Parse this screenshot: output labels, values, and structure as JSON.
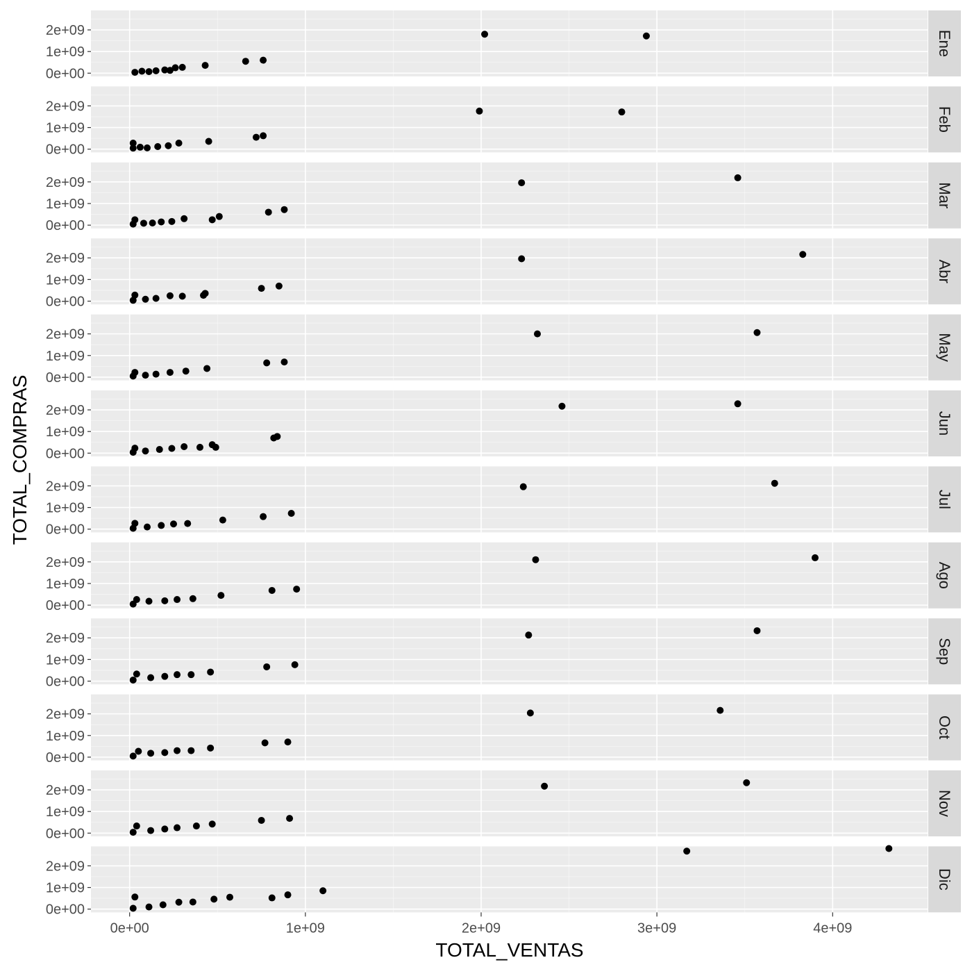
{
  "chart_data": {
    "type": "scatter",
    "facet": "rows",
    "xlabel": "TOTAL_VENTAS",
    "ylabel": "TOTAL_COMPRAS",
    "xlim": [
      -220000000,
      4540000000
    ],
    "ylim": [
      -150000000,
      2900000000
    ],
    "x_ticks": [
      {
        "value": 0,
        "label": "0e+00"
      },
      {
        "value": 1000000000,
        "label": "1e+09"
      },
      {
        "value": 2000000000,
        "label": "2e+09"
      },
      {
        "value": 3000000000,
        "label": "3e+09"
      },
      {
        "value": 4000000000,
        "label": "4e+09"
      }
    ],
    "y_ticks": [
      {
        "value": 0,
        "label": "0e+00"
      },
      {
        "value": 1000000000,
        "label": "1e+09"
      },
      {
        "value": 2000000000,
        "label": "2e+09"
      }
    ],
    "grid": true,
    "colors": {
      "panel_bg": "#ebebeb",
      "grid_major": "#ffffff",
      "strip_bg": "#d9d9d9",
      "point": "#000000"
    },
    "panels": [
      {
        "label": "Ene",
        "points": [
          [
            30000000,
            40000000
          ],
          [
            70000000,
            90000000
          ],
          [
            110000000,
            70000000
          ],
          [
            150000000,
            110000000
          ],
          [
            200000000,
            150000000
          ],
          [
            230000000,
            130000000
          ],
          [
            260000000,
            250000000
          ],
          [
            300000000,
            270000000
          ],
          [
            430000000,
            360000000
          ],
          [
            660000000,
            550000000
          ],
          [
            760000000,
            600000000
          ],
          [
            2020000000,
            1800000000
          ],
          [
            2940000000,
            1720000000
          ]
        ]
      },
      {
        "label": "Feb",
        "points": [
          [
            20000000,
            50000000
          ],
          [
            20000000,
            280000000
          ],
          [
            60000000,
            90000000
          ],
          [
            100000000,
            60000000
          ],
          [
            160000000,
            120000000
          ],
          [
            220000000,
            160000000
          ],
          [
            280000000,
            280000000
          ],
          [
            450000000,
            360000000
          ],
          [
            720000000,
            550000000
          ],
          [
            760000000,
            620000000
          ],
          [
            1990000000,
            1760000000
          ],
          [
            2800000000,
            1720000000
          ]
        ]
      },
      {
        "label": "Mar",
        "points": [
          [
            20000000,
            50000000
          ],
          [
            30000000,
            250000000
          ],
          [
            80000000,
            90000000
          ],
          [
            130000000,
            100000000
          ],
          [
            180000000,
            150000000
          ],
          [
            240000000,
            170000000
          ],
          [
            310000000,
            300000000
          ],
          [
            470000000,
            250000000
          ],
          [
            510000000,
            400000000
          ],
          [
            790000000,
            600000000
          ],
          [
            880000000,
            720000000
          ],
          [
            2230000000,
            1960000000
          ],
          [
            3460000000,
            2190000000
          ]
        ]
      },
      {
        "label": "Abr",
        "points": [
          [
            20000000,
            40000000
          ],
          [
            30000000,
            280000000
          ],
          [
            90000000,
            90000000
          ],
          [
            150000000,
            130000000
          ],
          [
            230000000,
            250000000
          ],
          [
            300000000,
            230000000
          ],
          [
            420000000,
            270000000
          ],
          [
            430000000,
            360000000
          ],
          [
            750000000,
            590000000
          ],
          [
            850000000,
            700000000
          ],
          [
            2230000000,
            1960000000
          ],
          [
            3830000000,
            2160000000
          ]
        ]
      },
      {
        "label": "May",
        "points": [
          [
            20000000,
            50000000
          ],
          [
            30000000,
            220000000
          ],
          [
            90000000,
            90000000
          ],
          [
            150000000,
            140000000
          ],
          [
            230000000,
            220000000
          ],
          [
            320000000,
            280000000
          ],
          [
            440000000,
            400000000
          ],
          [
            780000000,
            660000000
          ],
          [
            880000000,
            700000000
          ],
          [
            2320000000,
            2000000000
          ],
          [
            3570000000,
            2060000000
          ]
        ]
      },
      {
        "label": "Jun",
        "points": [
          [
            20000000,
            40000000
          ],
          [
            30000000,
            230000000
          ],
          [
            90000000,
            100000000
          ],
          [
            170000000,
            170000000
          ],
          [
            240000000,
            220000000
          ],
          [
            310000000,
            300000000
          ],
          [
            400000000,
            270000000
          ],
          [
            470000000,
            390000000
          ],
          [
            490000000,
            270000000
          ],
          [
            820000000,
            700000000
          ],
          [
            840000000,
            770000000
          ],
          [
            2460000000,
            2170000000
          ],
          [
            3460000000,
            2280000000
          ]
        ]
      },
      {
        "label": "Jul",
        "points": [
          [
            20000000,
            40000000
          ],
          [
            30000000,
            270000000
          ],
          [
            100000000,
            100000000
          ],
          [
            180000000,
            170000000
          ],
          [
            250000000,
            240000000
          ],
          [
            330000000,
            260000000
          ],
          [
            530000000,
            420000000
          ],
          [
            760000000,
            580000000
          ],
          [
            920000000,
            730000000
          ],
          [
            2240000000,
            1960000000
          ],
          [
            3670000000,
            2120000000
          ]
        ]
      },
      {
        "label": "Ago",
        "points": [
          [
            20000000,
            50000000
          ],
          [
            40000000,
            260000000
          ],
          [
            110000000,
            180000000
          ],
          [
            200000000,
            200000000
          ],
          [
            270000000,
            260000000
          ],
          [
            360000000,
            300000000
          ],
          [
            520000000,
            450000000
          ],
          [
            810000000,
            680000000
          ],
          [
            950000000,
            740000000
          ],
          [
            2310000000,
            2100000000
          ],
          [
            3900000000,
            2190000000
          ]
        ]
      },
      {
        "label": "Sep",
        "points": [
          [
            20000000,
            50000000
          ],
          [
            40000000,
            330000000
          ],
          [
            120000000,
            160000000
          ],
          [
            200000000,
            220000000
          ],
          [
            270000000,
            300000000
          ],
          [
            350000000,
            300000000
          ],
          [
            460000000,
            420000000
          ],
          [
            780000000,
            660000000
          ],
          [
            940000000,
            760000000
          ],
          [
            2270000000,
            2130000000
          ],
          [
            3570000000,
            2330000000
          ]
        ]
      },
      {
        "label": "Oct",
        "points": [
          [
            20000000,
            50000000
          ],
          [
            50000000,
            270000000
          ],
          [
            120000000,
            180000000
          ],
          [
            200000000,
            210000000
          ],
          [
            270000000,
            300000000
          ],
          [
            350000000,
            300000000
          ],
          [
            460000000,
            420000000
          ],
          [
            770000000,
            660000000
          ],
          [
            900000000,
            700000000
          ],
          [
            2280000000,
            2040000000
          ],
          [
            3360000000,
            2160000000
          ]
        ]
      },
      {
        "label": "Nov",
        "points": [
          [
            20000000,
            40000000
          ],
          [
            40000000,
            330000000
          ],
          [
            120000000,
            120000000
          ],
          [
            200000000,
            190000000
          ],
          [
            270000000,
            250000000
          ],
          [
            380000000,
            330000000
          ],
          [
            470000000,
            420000000
          ],
          [
            750000000,
            590000000
          ],
          [
            910000000,
            680000000
          ],
          [
            2360000000,
            2170000000
          ],
          [
            3510000000,
            2330000000
          ]
        ]
      },
      {
        "label": "Dic",
        "points": [
          [
            20000000,
            40000000
          ],
          [
            30000000,
            560000000
          ],
          [
            110000000,
            100000000
          ],
          [
            190000000,
            200000000
          ],
          [
            280000000,
            320000000
          ],
          [
            360000000,
            330000000
          ],
          [
            480000000,
            460000000
          ],
          [
            570000000,
            550000000
          ],
          [
            810000000,
            520000000
          ],
          [
            900000000,
            660000000
          ],
          [
            1100000000,
            850000000
          ],
          [
            3170000000,
            2680000000
          ],
          [
            4320000000,
            2800000000
          ]
        ]
      }
    ]
  }
}
